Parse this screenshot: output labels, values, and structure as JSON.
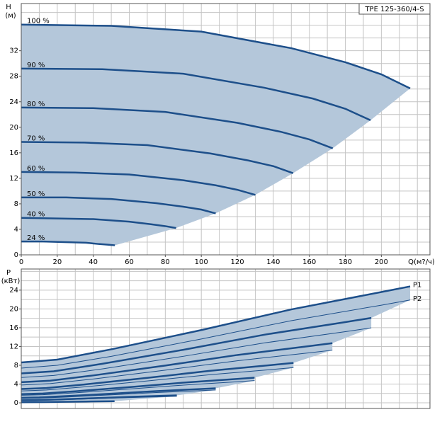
{
  "chart_data": [
    {
      "type": "line",
      "title": "TPE 125-360/4-S",
      "y_label": "H",
      "y_unit": "(м)",
      "x_label": "Q(м?/ч)",
      "xlim": [
        0,
        227
      ],
      "ylim": [
        0,
        39.4
      ],
      "xticks": [
        0,
        20,
        40,
        60,
        80,
        100,
        120,
        140,
        160,
        180,
        200
      ],
      "yticks": [
        0,
        4,
        8,
        12,
        16,
        20,
        24,
        28,
        32
      ],
      "xgrid": [
        0,
        10,
        20,
        30,
        40,
        50,
        60,
        70,
        80,
        90,
        100,
        110,
        120,
        130,
        140,
        150,
        160,
        170,
        180,
        190,
        200,
        210,
        220
      ],
      "ygrid": [
        0,
        2,
        4,
        6,
        8,
        10,
        12,
        14,
        16,
        18,
        20,
        22,
        24,
        26,
        28,
        30,
        32,
        34,
        36,
        38
      ],
      "area_color": "#b4c7da",
      "line_color": "#1d4f8a",
      "series": [
        {
          "name": "100 %",
          "x": [
            0,
            50,
            100,
            150,
            180,
            200,
            216
          ],
          "values": [
            36.1,
            35.9,
            35,
            32.4,
            30.2,
            28.3,
            26.1
          ]
        },
        {
          "name": "90 %",
          "x": [
            0,
            45,
            90,
            135,
            162,
            180,
            194
          ],
          "values": [
            29.2,
            29.1,
            28.4,
            26.2,
            24.5,
            22.9,
            21.1
          ]
        },
        {
          "name": "80 %",
          "x": [
            0,
            40,
            80,
            120,
            144,
            160,
            173
          ],
          "values": [
            23.1,
            23,
            22.4,
            20.7,
            19.3,
            18.1,
            16.7
          ]
        },
        {
          "name": "70 %",
          "x": [
            0,
            35,
            70,
            105,
            126,
            140,
            151
          ],
          "values": [
            17.7,
            17.6,
            17.2,
            15.9,
            14.8,
            13.9,
            12.8
          ]
        },
        {
          "name": "60 %",
          "x": [
            0,
            30,
            60,
            90,
            108,
            120,
            130
          ],
          "values": [
            13,
            12.9,
            12.6,
            11.7,
            10.9,
            10.2,
            9.4
          ]
        },
        {
          "name": "50 %",
          "x": [
            0,
            25,
            50,
            75,
            90,
            100,
            108
          ],
          "values": [
            9,
            9,
            8.75,
            8.1,
            7.55,
            7.1,
            6.5
          ]
        },
        {
          "name": "40 %",
          "x": [
            0,
            20,
            40,
            60,
            72,
            80,
            86
          ],
          "values": [
            5.8,
            5.7,
            5.6,
            5.2,
            4.8,
            4.5,
            4.2
          ]
        },
        {
          "name": "24 %",
          "x": [
            0,
            12,
            24,
            36,
            43,
            48,
            52
          ],
          "values": [
            2.1,
            2.1,
            2,
            1.9,
            1.7,
            1.6,
            1.5
          ]
        }
      ]
    },
    {
      "type": "line",
      "y_label": "P",
      "y_unit": "(кВт)",
      "xlim": [
        0,
        227
      ],
      "ylim": [
        -1.2,
        28.5
      ],
      "yticks": [
        0,
        4,
        8,
        12,
        16,
        20,
        24
      ],
      "xgrid": [
        0,
        10,
        20,
        30,
        40,
        50,
        60,
        70,
        80,
        90,
        100,
        110,
        120,
        130,
        140,
        150,
        160,
        170,
        180,
        190,
        200,
        210,
        220
      ],
      "ygrid": [
        0,
        2,
        4,
        6,
        8,
        10,
        12,
        14,
        16,
        18,
        20,
        22,
        24,
        26,
        28
      ],
      "area_color": "#b4c7da",
      "line_color": "#1d4f8a",
      "series": [
        {
          "name": "P1",
          "width": 2.5,
          "x": [
            0,
            20,
            50,
            100,
            150,
            200,
            216
          ],
          "values": [
            8.6,
            9.2,
            11.4,
            15.5,
            19.9,
            23.6,
            24.8
          ]
        },
        {
          "name": "P2",
          "width": 1,
          "x": [
            0,
            20,
            50,
            100,
            150,
            200,
            216
          ],
          "values": [
            7.4,
            8,
            9.9,
            13.6,
            17.5,
            20.8,
            21.9
          ]
        },
        {
          "width": 2.5,
          "x": [
            0,
            18,
            45,
            90,
            135,
            180,
            194.4
          ],
          "values": [
            6.27,
            6.71,
            8.31,
            11.3,
            14.51,
            17.2,
            18.08
          ]
        },
        {
          "width": 1,
          "x": [
            0,
            18,
            45,
            90,
            135,
            180,
            194.4
          ],
          "values": [
            5.39,
            5.83,
            7.22,
            9.91,
            12.76,
            15.16,
            15.97
          ]
        },
        {
          "width": 2.5,
          "x": [
            0,
            16,
            40,
            80,
            120,
            160,
            172.8
          ],
          "values": [
            4.4,
            4.71,
            5.84,
            7.94,
            10.19,
            12.08,
            12.7
          ]
        },
        {
          "width": 1,
          "x": [
            0,
            16,
            40,
            80,
            120,
            160,
            172.8
          ],
          "values": [
            3.79,
            4.1,
            5.07,
            6.96,
            8.96,
            10.65,
            11.21
          ]
        },
        {
          "width": 2.5,
          "x": [
            0,
            14,
            35,
            70,
            105,
            140,
            151.2
          ],
          "values": [
            2.95,
            3.16,
            3.91,
            5.32,
            6.83,
            8.09,
            8.51
          ]
        },
        {
          "width": 1,
          "x": [
            0,
            14,
            35,
            70,
            105,
            140,
            151.2
          ],
          "values": [
            2.54,
            2.74,
            3.4,
            4.66,
            6,
            7.13,
            7.51
          ]
        },
        {
          "width": 2.5,
          "x": [
            0,
            12,
            30,
            60,
            90,
            120,
            129.6
          ],
          "values": [
            1.86,
            1.99,
            2.46,
            3.35,
            4.3,
            5.1,
            5.36
          ]
        },
        {
          "width": 1,
          "x": [
            0,
            12,
            30,
            60,
            90,
            120,
            129.6
          ],
          "values": [
            1.6,
            1.73,
            2.14,
            2.94,
            3.78,
            4.49,
            4.73
          ]
        },
        {
          "width": 2.5,
          "x": [
            0,
            10,
            25,
            50,
            75,
            100,
            108
          ],
          "values": [
            1.08,
            1.15,
            1.43,
            1.94,
            2.49,
            2.95,
            3.1
          ]
        },
        {
          "width": 1,
          "x": [
            0,
            10,
            25,
            50,
            75,
            100,
            108
          ],
          "values": [
            0.93,
            1,
            1.24,
            1.7,
            2.19,
            2.6,
            2.74
          ]
        },
        {
          "width": 2.5,
          "x": [
            0,
            8,
            20,
            40,
            60,
            80,
            86.4
          ],
          "values": [
            0.55,
            0.59,
            0.73,
            0.99,
            1.27,
            1.51,
            1.59
          ]
        },
        {
          "width": 1,
          "x": [
            0,
            8,
            20,
            40,
            60,
            80,
            86.4
          ],
          "values": [
            0.47,
            0.51,
            0.63,
            0.87,
            1.12,
            1.33,
            1.4
          ]
        },
        {
          "width": 2.5,
          "x": [
            0,
            4.8,
            12,
            24,
            36,
            48,
            51.8
          ],
          "values": [
            0.12,
            0.13,
            0.16,
            0.21,
            0.27,
            0.33,
            0.34
          ]
        },
        {
          "width": 1,
          "x": [
            0,
            4.8,
            12,
            24,
            36,
            48,
            51.8
          ],
          "values": [
            0.1,
            0.11,
            0.14,
            0.19,
            0.24,
            0.29,
            0.3
          ]
        }
      ]
    }
  ]
}
